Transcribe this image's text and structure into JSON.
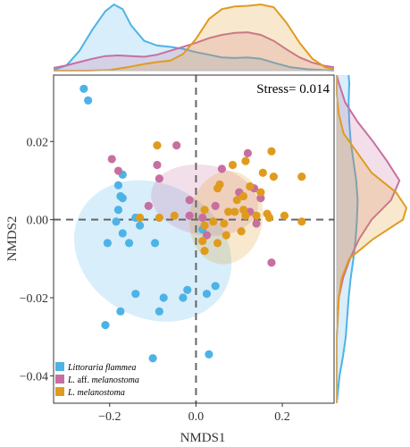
{
  "chart_data": {
    "type": "scatter",
    "title": "",
    "xlabel": "NMDS1",
    "ylabel": "NMDS2",
    "xlim": [
      -0.33,
      0.32
    ],
    "ylim": [
      -0.047,
      0.037
    ],
    "xticks": [
      -0.2,
      0.0,
      0.2
    ],
    "xtick_labels": [
      "−0.2",
      "0.0",
      "0.2"
    ],
    "yticks": [
      -0.04,
      -0.02,
      0.0,
      0.02
    ],
    "ytick_labels": [
      "−0.04",
      "−0.02",
      "0.00",
      "0.02"
    ],
    "reference_lines": {
      "x": 0,
      "y": 0,
      "style": "dashed"
    },
    "annotation": "Stress= 0.014",
    "legend_position": "bottom-left",
    "marginal_density": {
      "top": true,
      "right": true
    },
    "series": [
      {
        "name": "Littoraria flammea",
        "name_italic": "Littoraria flammea",
        "name_plain": "",
        "color": "#4db3e6",
        "ellipse": {
          "cx": -0.1,
          "cy": -0.008,
          "rx": 0.31,
          "ry": 0.042,
          "angle_deg": 61
        },
        "points": [
          [
            -0.26,
            0.0335
          ],
          [
            -0.25,
            0.0305
          ],
          [
            -0.17,
            0.0115
          ],
          [
            -0.17,
            0.0055
          ],
          [
            -0.18,
            0.0088
          ],
          [
            -0.175,
            0.006
          ],
          [
            -0.18,
            0.0025
          ],
          [
            -0.185,
            -0.0005
          ],
          [
            -0.14,
            0.0005
          ],
          [
            -0.13,
            -0.0015
          ],
          [
            -0.17,
            -0.0035
          ],
          [
            -0.155,
            -0.006
          ],
          [
            -0.205,
            -0.006
          ],
          [
            -0.175,
            -0.0235
          ],
          [
            -0.085,
            -0.0235
          ],
          [
            -0.095,
            -0.006
          ],
          [
            -0.14,
            -0.019
          ],
          [
            -0.075,
            -0.02
          ],
          [
            -0.02,
            -0.018
          ],
          [
            -0.03,
            -0.02
          ],
          [
            0.045,
            -0.017
          ],
          [
            0.025,
            -0.019
          ],
          [
            0.015,
            -0.0025
          ],
          [
            -0.21,
            -0.027
          ],
          [
            -0.1,
            -0.0355
          ],
          [
            0.03,
            -0.0345
          ]
        ]
      },
      {
        "name": "L. aff. melanostoma",
        "name_italic": "L.",
        "name_plain": " aff. ",
        "name_italic2": "melanostoma",
        "color": "#c76fa0",
        "ellipse": {
          "cx": 0.02,
          "cy": 0.005,
          "rx": 0.25,
          "ry": 0.018,
          "angle_deg": -9
        },
        "points": [
          [
            -0.195,
            0.0155
          ],
          [
            -0.18,
            0.0125
          ],
          [
            -0.09,
            0.014
          ],
          [
            -0.045,
            0.019
          ],
          [
            -0.11,
            0.0035
          ],
          [
            -0.085,
            0.0105
          ],
          [
            -0.015,
            0.001
          ],
          [
            0.015,
            0.0005
          ],
          [
            0.06,
            0.013
          ],
          [
            0.135,
            0.008
          ],
          [
            0.045,
            0.0035
          ],
          [
            0.12,
            0.017
          ],
          [
            0.1,
            0.007
          ],
          [
            0.025,
            -0.004
          ],
          [
            0.14,
            -0.001
          ],
          [
            -0.015,
            0.005
          ],
          [
            0.15,
            0.0055
          ],
          [
            0.175,
            -0.011
          ],
          [
            0.125,
            0.002
          ]
        ]
      },
      {
        "name": "L. melanostoma",
        "name_italic": "L. melanostoma",
        "name_plain": "",
        "color": "#e09b1f",
        "ellipse": {
          "cx": 0.07,
          "cy": 0.0005,
          "rx": 0.17,
          "ry": 0.024,
          "angle_deg": -9
        },
        "points": [
          [
            -0.09,
            0.019
          ],
          [
            -0.13,
            0.0005
          ],
          [
            -0.085,
            0.0005
          ],
          [
            -0.05,
            0.001
          ],
          [
            0.055,
            0.009
          ],
          [
            0.11,
            0.006
          ],
          [
            0.115,
            0.015
          ],
          [
            0.125,
            0.0085
          ],
          [
            0.155,
            0.012
          ],
          [
            0.18,
            0.011
          ],
          [
            0.175,
            0.0175
          ],
          [
            0.245,
            0.011
          ],
          [
            0.085,
            0.014
          ],
          [
            0.05,
            0.008
          ],
          [
            0.02,
            0.0025
          ],
          [
            0.02,
            -0.0015
          ],
          [
            0.04,
            -0.0005
          ],
          [
            0.065,
            -0.001
          ],
          [
            0.075,
            0.002
          ],
          [
            0.09,
            0.002
          ],
          [
            0.095,
            0.005
          ],
          [
            0.115,
            0.001
          ],
          [
            0.15,
            0.007
          ],
          [
            0.165,
            0.0015
          ],
          [
            0.17,
            0.0005
          ],
          [
            0.205,
            0.001
          ],
          [
            0.245,
            -0.0005
          ],
          [
            0.05,
            -0.006
          ],
          [
            0.07,
            -0.004
          ],
          [
            0.02,
            -0.008
          ],
          [
            0.015,
            -0.0055
          ],
          [
            0.105,
            -0.003
          ],
          [
            0.11,
            0.0025
          ],
          [
            0.14,
            0.001
          ]
        ]
      }
    ],
    "density_top": {
      "Littoraria flammea": [
        [
          -0.33,
          0.01
        ],
        [
          -0.3,
          0.08
        ],
        [
          -0.27,
          0.3
        ],
        [
          -0.24,
          0.62
        ],
        [
          -0.21,
          0.9
        ],
        [
          -0.19,
          1.0
        ],
        [
          -0.17,
          0.93
        ],
        [
          -0.15,
          0.68
        ],
        [
          -0.12,
          0.45
        ],
        [
          -0.09,
          0.38
        ],
        [
          -0.06,
          0.36
        ],
        [
          -0.03,
          0.33
        ],
        [
          0.0,
          0.28
        ],
        [
          0.03,
          0.24
        ],
        [
          0.06,
          0.2
        ],
        [
          0.09,
          0.19
        ],
        [
          0.12,
          0.2
        ],
        [
          0.15,
          0.18
        ],
        [
          0.18,
          0.12
        ],
        [
          0.22,
          0.05
        ],
        [
          0.26,
          0.02
        ],
        [
          0.32,
          0.0
        ]
      ],
      "L. aff. melanostoma": [
        [
          -0.33,
          0.04
        ],
        [
          -0.3,
          0.08
        ],
        [
          -0.27,
          0.13
        ],
        [
          -0.24,
          0.18
        ],
        [
          -0.21,
          0.22
        ],
        [
          -0.18,
          0.23
        ],
        [
          -0.15,
          0.22
        ],
        [
          -0.12,
          0.21
        ],
        [
          -0.09,
          0.24
        ],
        [
          -0.06,
          0.3
        ],
        [
          -0.03,
          0.36
        ],
        [
          0.0,
          0.42
        ],
        [
          0.03,
          0.49
        ],
        [
          0.06,
          0.54
        ],
        [
          0.09,
          0.57
        ],
        [
          0.12,
          0.58
        ],
        [
          0.15,
          0.54
        ],
        [
          0.18,
          0.45
        ],
        [
          0.21,
          0.32
        ],
        [
          0.24,
          0.2
        ],
        [
          0.27,
          0.12
        ],
        [
          0.3,
          0.07
        ],
        [
          0.32,
          0.05
        ]
      ],
      "L. melanostoma": [
        [
          -0.33,
          0.0
        ],
        [
          -0.25,
          0.0
        ],
        [
          -0.2,
          0.01
        ],
        [
          -0.16,
          0.05
        ],
        [
          -0.12,
          0.1
        ],
        [
          -0.09,
          0.13
        ],
        [
          -0.06,
          0.15
        ],
        [
          -0.03,
          0.25
        ],
        [
          0.0,
          0.48
        ],
        [
          0.03,
          0.78
        ],
        [
          0.06,
          0.93
        ],
        [
          0.09,
          0.97
        ],
        [
          0.12,
          0.98
        ],
        [
          0.15,
          1.0
        ],
        [
          0.18,
          0.96
        ],
        [
          0.21,
          0.72
        ],
        [
          0.24,
          0.42
        ],
        [
          0.27,
          0.18
        ],
        [
          0.3,
          0.05
        ],
        [
          0.32,
          0.02
        ]
      ]
    },
    "density_right": {
      "Littoraria flammea": [
        [
          -0.047,
          0.0
        ],
        [
          -0.04,
          0.04
        ],
        [
          -0.035,
          0.09
        ],
        [
          -0.03,
          0.13
        ],
        [
          -0.025,
          0.15
        ],
        [
          -0.02,
          0.17
        ],
        [
          -0.015,
          0.2
        ],
        [
          -0.01,
          0.24
        ],
        [
          -0.005,
          0.27
        ],
        [
          0.0,
          0.29
        ],
        [
          0.005,
          0.3
        ],
        [
          0.01,
          0.28
        ],
        [
          0.015,
          0.24
        ],
        [
          0.02,
          0.2
        ],
        [
          0.025,
          0.18
        ],
        [
          0.03,
          0.17
        ],
        [
          0.035,
          0.18
        ],
        [
          0.037,
          0.17
        ]
      ],
      "L. aff. melanostoma": [
        [
          -0.047,
          0.0
        ],
        [
          -0.03,
          0.0
        ],
        [
          -0.02,
          0.03
        ],
        [
          -0.015,
          0.09
        ],
        [
          -0.01,
          0.19
        ],
        [
          -0.005,
          0.32
        ],
        [
          0.0,
          0.5
        ],
        [
          0.005,
          0.78
        ],
        [
          0.01,
          0.9
        ],
        [
          0.015,
          0.72
        ],
        [
          0.02,
          0.52
        ],
        [
          0.025,
          0.3
        ],
        [
          0.03,
          0.12
        ],
        [
          0.035,
          0.03
        ],
        [
          0.037,
          0.0
        ]
      ],
      "L. melanostoma": [
        [
          -0.047,
          0.0
        ],
        [
          -0.03,
          0.0
        ],
        [
          -0.02,
          0.03
        ],
        [
          -0.015,
          0.07
        ],
        [
          -0.01,
          0.18
        ],
        [
          -0.005,
          0.52
        ],
        [
          0.0,
          0.95
        ],
        [
          0.003,
          1.0
        ],
        [
          0.007,
          0.85
        ],
        [
          0.012,
          0.5
        ],
        [
          0.017,
          0.3
        ],
        [
          0.022,
          0.1
        ],
        [
          0.027,
          0.03
        ],
        [
          0.032,
          0.0
        ],
        [
          0.037,
          0.0
        ]
      ]
    }
  }
}
